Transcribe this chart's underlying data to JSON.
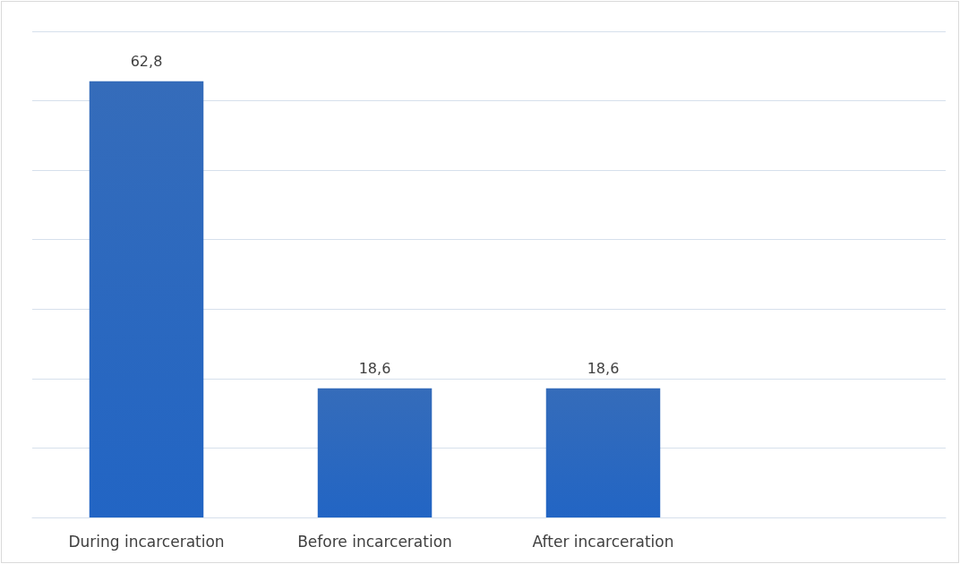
{
  "chart_data": {
    "type": "bar",
    "categories": [
      "During incarceration",
      "Before incarceration",
      "After incarceration",
      null
    ],
    "values": [
      62.8,
      18.6,
      18.6,
      null
    ],
    "value_labels": [
      "62,8",
      "18,6",
      "18,6",
      null
    ],
    "color": "#1f5cb3",
    "grid": "y",
    "tick_labels": "x"
  }
}
